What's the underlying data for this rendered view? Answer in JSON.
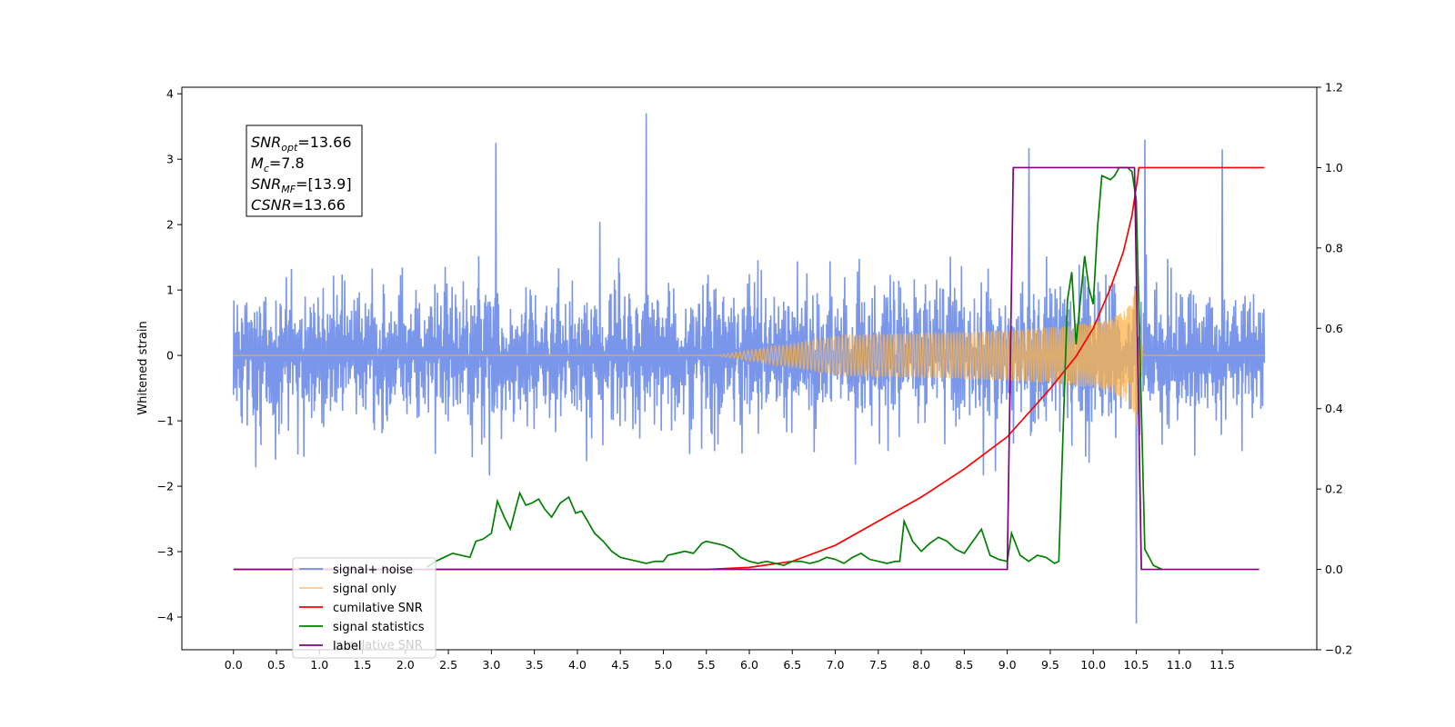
{
  "chart_data": {
    "type": "line",
    "title": "",
    "xlabel": "",
    "ylabel": "Whitened strain",
    "y2label": "",
    "xlim": [
      -0.6,
      12.6
    ],
    "ylim": [
      -4.5,
      4.1
    ],
    "y2lim": [
      -0.2,
      1.2
    ],
    "x_ticks": [
      0.0,
      0.5,
      1.0,
      1.5,
      2.0,
      2.5,
      3.0,
      3.5,
      4.0,
      4.5,
      5.0,
      5.5,
      6.0,
      6.5,
      7.0,
      7.5,
      8.0,
      8.5,
      9.0,
      9.5,
      10.0,
      10.5,
      11.0,
      11.5
    ],
    "x_tick_labels": [
      "0.0",
      "0.5",
      "1.0",
      "1.5",
      "2.0",
      "2.5",
      "3.0",
      "3.5",
      "4.0",
      "4.5",
      "5.0",
      "5.5",
      "6.0",
      "6.5",
      "7.0",
      "7.5",
      "8.0",
      "8.5",
      "9.0",
      "9.5",
      "10.0",
      "10.5",
      "11.0",
      "11.5"
    ],
    "y_ticks": [
      -4,
      -3,
      -2,
      -1,
      0,
      1,
      2,
      3,
      4
    ],
    "y_tick_labels": [
      "−4",
      "−3",
      "−2",
      "−1",
      "0",
      "1",
      "2",
      "3",
      "4"
    ],
    "y2_ticks": [
      -0.2,
      0.0,
      0.2,
      0.4,
      0.6,
      0.8,
      1.0,
      1.2
    ],
    "y2_tick_labels": [
      "−0.2",
      "0.0",
      "0.2",
      "0.4",
      "0.6",
      "0.8",
      "1.0",
      "1.2"
    ],
    "grid": false,
    "legend": {
      "placement": "lower-left",
      "entries": [
        "signal+ noise",
        "signal only",
        "cumilative SNR",
        "signal statistics",
        "label"
      ],
      "overlapped_text": "cumilative SNR"
    },
    "annotation": {
      "lines": [
        {
          "main": "SNR",
          "sub": "opt",
          "rest": "=13.66"
        },
        {
          "main": "M",
          "sub": "c",
          "rest": "=7.8"
        },
        {
          "main": "SNR",
          "sub": "MF",
          "rest": "=[13.9]"
        },
        {
          "main": "CSNR",
          "sub": "",
          "rest": "=13.66"
        }
      ]
    },
    "series": [
      {
        "name": "signal+ noise",
        "axis": "left",
        "color": "#4169e1",
        "kind": "noise",
        "x_range": [
          0.0,
          11.99
        ],
        "typical_amplitude": 1.5,
        "notable_peaks": [
          [
            4.8,
            3.7
          ],
          [
            10.5,
            -4.1
          ],
          [
            10.6,
            3.3
          ],
          [
            3.05,
            3.25
          ],
          [
            9.25,
            3.17
          ],
          [
            11.5,
            3.15
          ]
        ]
      },
      {
        "name": "signal only",
        "axis": "left",
        "color": "#ffb347",
        "kind": "chirp",
        "start": 6.4,
        "end": 10.52,
        "peak_amplitude": 1.15
      },
      {
        "name": "cumilative SNR",
        "axis": "right",
        "color": "#ff0000",
        "x": [
          0.0,
          5.5,
          6.0,
          6.5,
          7.0,
          7.5,
          8.0,
          8.5,
          9.0,
          9.5,
          9.8,
          10.0,
          10.2,
          10.35,
          10.45,
          10.52,
          10.53,
          11.99
        ],
        "y": [
          0.0,
          0.0,
          0.005,
          0.02,
          0.06,
          0.12,
          0.18,
          0.25,
          0.33,
          0.45,
          0.53,
          0.6,
          0.7,
          0.79,
          0.88,
          0.98,
          1.0,
          1.0
        ]
      },
      {
        "name": "signal statistics",
        "axis": "right",
        "color": "#008000",
        "x": [
          2.25,
          2.35,
          2.45,
          2.55,
          2.65,
          2.75,
          2.82,
          2.9,
          3.0,
          3.07,
          3.15,
          3.22,
          3.28,
          3.33,
          3.4,
          3.47,
          3.55,
          3.62,
          3.7,
          3.8,
          3.9,
          3.98,
          4.05,
          4.12,
          4.2,
          4.3,
          4.4,
          4.5,
          4.6,
          4.7,
          4.8,
          4.9,
          5.0,
          5.05,
          5.15,
          5.25,
          5.35,
          5.45,
          5.5,
          5.6,
          5.7,
          5.8,
          5.9,
          6.0,
          6.1,
          6.2,
          6.3,
          6.4,
          6.5,
          6.6,
          6.7,
          6.8,
          6.9,
          7.0,
          7.1,
          7.2,
          7.3,
          7.4,
          7.5,
          7.6,
          7.7,
          7.75,
          7.8,
          7.9,
          8.0,
          8.1,
          8.2,
          8.3,
          8.4,
          8.5,
          8.6,
          8.7,
          8.8,
          8.9,
          9.0,
          9.05,
          9.15,
          9.25,
          9.35,
          9.45,
          9.55,
          9.6,
          9.7,
          9.75,
          9.8,
          9.9,
          9.95,
          10.0,
          10.05,
          10.1,
          10.2,
          10.25,
          10.3,
          10.4,
          10.45,
          10.5,
          10.6,
          10.7,
          10.8
        ],
        "y": [
          0.005,
          0.02,
          0.03,
          0.04,
          0.035,
          0.03,
          0.07,
          0.075,
          0.09,
          0.17,
          0.13,
          0.1,
          0.15,
          0.19,
          0.16,
          0.165,
          0.175,
          0.15,
          0.13,
          0.165,
          0.18,
          0.14,
          0.145,
          0.12,
          0.09,
          0.07,
          0.045,
          0.03,
          0.025,
          0.02,
          0.015,
          0.02,
          0.02,
          0.035,
          0.04,
          0.045,
          0.04,
          0.065,
          0.07,
          0.065,
          0.06,
          0.05,
          0.03,
          0.02,
          0.015,
          0.02,
          0.015,
          0.01,
          0.02,
          0.02,
          0.015,
          0.02,
          0.03,
          0.025,
          0.015,
          0.03,
          0.04,
          0.025,
          0.02,
          0.015,
          0.02,
          0.02,
          0.12,
          0.07,
          0.045,
          0.065,
          0.08,
          0.07,
          0.05,
          0.04,
          0.07,
          0.1,
          0.035,
          0.025,
          0.02,
          0.09,
          0.035,
          0.02,
          0.035,
          0.03,
          0.015,
          0.02,
          0.67,
          0.74,
          0.56,
          0.78,
          0.7,
          0.66,
          0.85,
          0.98,
          0.97,
          0.98,
          1.0,
          1.0,
          0.99,
          0.92,
          0.05,
          0.01,
          0.0
        ]
      },
      {
        "name": "label",
        "axis": "right",
        "color": "#800080",
        "x": [
          0.0,
          9.0,
          9.07,
          10.48,
          10.56,
          11.93
        ],
        "y": [
          0.0,
          0.0,
          1.0,
          1.0,
          0.0,
          0.0
        ]
      }
    ]
  }
}
